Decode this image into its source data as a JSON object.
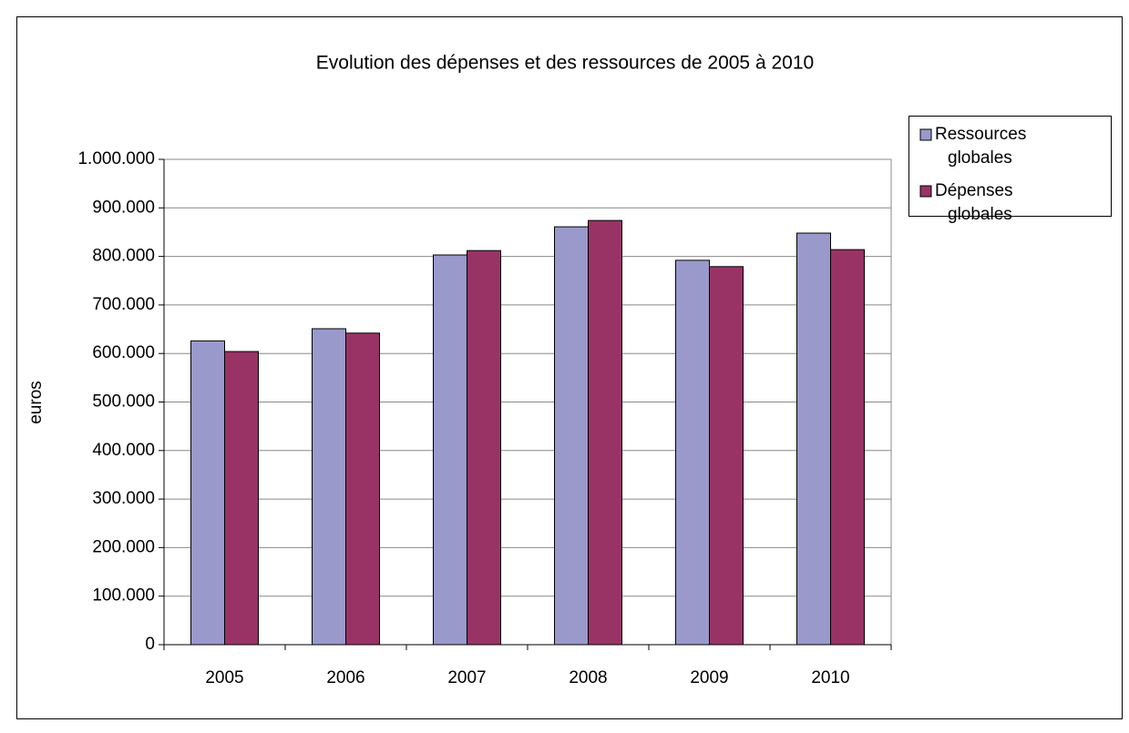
{
  "chart_data": {
    "type": "bar",
    "title": "Evolution des dépenses et des ressources de 2005 à 2010",
    "y_label": "euros",
    "categories": [
      "2005",
      "2006",
      "2007",
      "2008",
      "2009",
      "2010"
    ],
    "series": [
      {
        "name": "Ressources globales",
        "color": "#9999cc",
        "values": [
          626000,
          651000,
          803000,
          861000,
          792000,
          848000
        ]
      },
      {
        "name": "Dépenses globales",
        "color": "#993366",
        "values": [
          604000,
          642000,
          812000,
          874000,
          779000,
          814000
        ]
      }
    ],
    "ylim": [
      0,
      1000000
    ],
    "yticks": [
      0,
      {
        "value": 100000,
        "label": "100.000"
      },
      {
        "value": 200000,
        "label": "200.000"
      },
      {
        "value": 300000,
        "label": "300.000"
      },
      {
        "value": 400000,
        "label": "400.000"
      },
      {
        "value": 500000,
        "label": "500.000"
      },
      {
        "value": 600000,
        "label": "600.000"
      },
      {
        "value": 700000,
        "label": "700.000"
      },
      {
        "value": 800000,
        "label": "800.000"
      },
      {
        "value": 900000,
        "label": "900.000"
      },
      {
        "value": 1000000,
        "label": "1.000.000"
      }
    ],
    "grid": true,
    "legend": "right"
  }
}
